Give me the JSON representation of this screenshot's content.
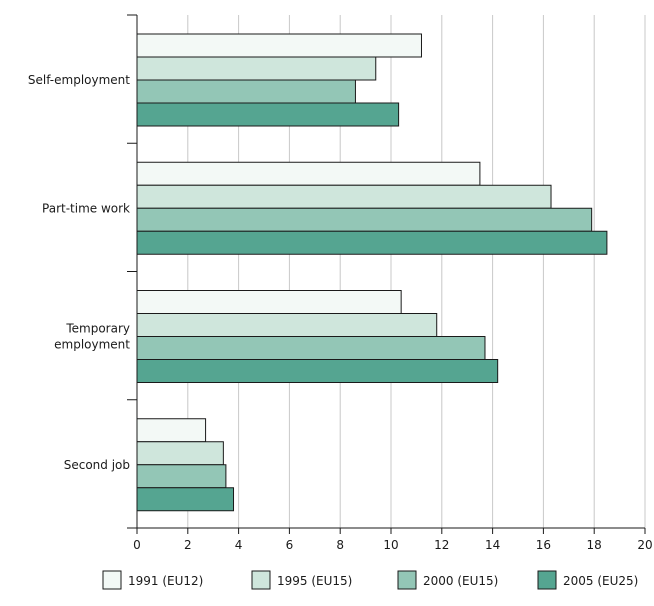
{
  "chart_data": {
    "type": "bar",
    "orientation": "horizontal",
    "title": "",
    "xlabel": "",
    "ylabel": "",
    "xlim": [
      0,
      20
    ],
    "x_ticks": [
      0,
      2,
      4,
      6,
      8,
      10,
      12,
      14,
      16,
      18,
      20
    ],
    "grid": "vertical",
    "legend_position": "bottom",
    "categories": [
      [
        "Self-employment"
      ],
      [
        "Part-time work"
      ],
      [
        "Temporary",
        "employment"
      ],
      [
        "Second job"
      ]
    ],
    "series": [
      {
        "name": "1991 (EU12)",
        "color": "#f3f9f6",
        "values": [
          11.2,
          13.5,
          10.4,
          2.7
        ]
      },
      {
        "name": "1995 (EU15)",
        "color": "#cfe6dc",
        "values": [
          9.4,
          16.3,
          11.8,
          3.4
        ]
      },
      {
        "name": "2000 (EU15)",
        "color": "#93c6b6",
        "values": [
          8.6,
          17.9,
          13.7,
          3.5
        ]
      },
      {
        "name": "2005 (EU25)",
        "color": "#55a591",
        "values": [
          10.3,
          18.5,
          14.2,
          3.8
        ]
      }
    ]
  }
}
